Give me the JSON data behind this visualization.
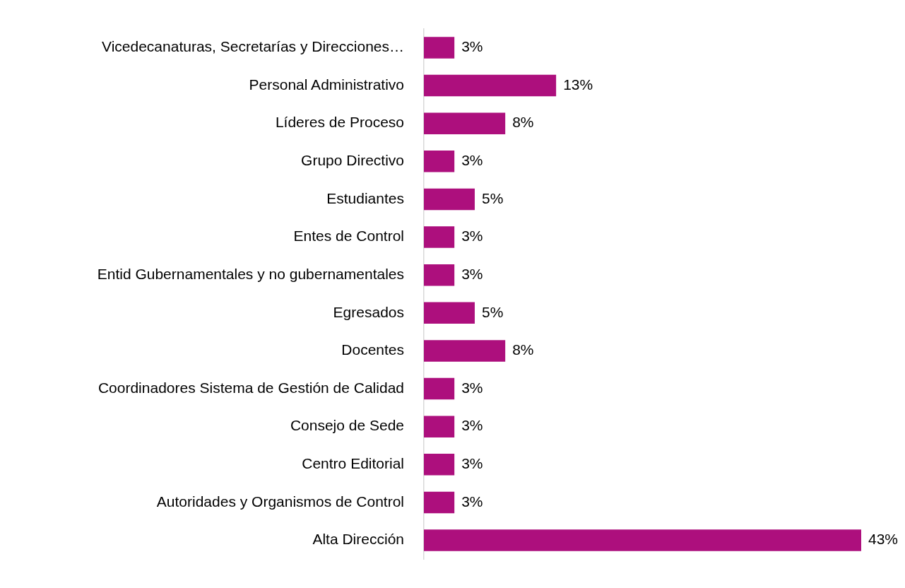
{
  "chart_data": {
    "type": "bar",
    "orientation": "horizontal",
    "categories": [
      "Vicedecanaturas, Secretarías y Direcciones…",
      "Personal Administrativo",
      "Líderes de Proceso",
      "Grupo Directivo",
      "Estudiantes",
      "Entes de Control",
      "Entid Gubernamentales y no gubernamentales",
      "Egresados",
      "Docentes",
      "Coordinadores Sistema de Gestión de Calidad",
      "Consejo de Sede",
      "Centro Editorial",
      "Autoridades y Organismos de Control",
      "Alta Dirección"
    ],
    "values": [
      3,
      13,
      8,
      3,
      5,
      3,
      3,
      5,
      8,
      3,
      3,
      3,
      3,
      43
    ],
    "value_labels": [
      "3%",
      "13%",
      "8%",
      "3%",
      "5%",
      "3%",
      "3%",
      "5%",
      "8%",
      "3%",
      "3%",
      "3%",
      "3%",
      "43%"
    ],
    "color": "#ad0f7d",
    "xlim": [
      0,
      43
    ],
    "legend": false,
    "tick_labels": "y"
  }
}
